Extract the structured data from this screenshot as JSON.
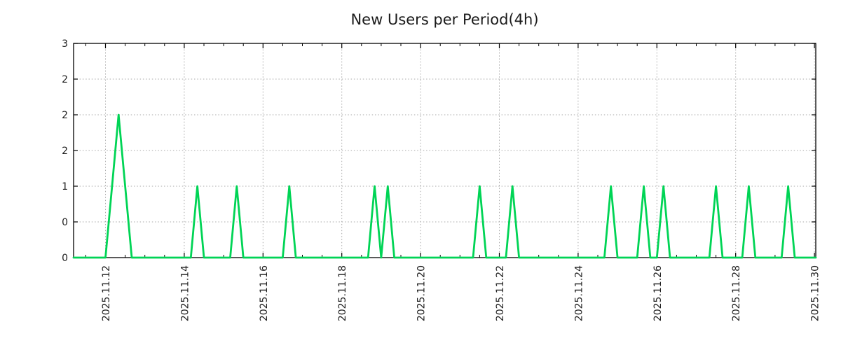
{
  "title": "New Users per Period(4h)",
  "colors": {
    "line": "#00d455",
    "grid": "#a8a8a8",
    "axis": "#000000",
    "text": "#1f1f1f",
    "background": "#ffffff"
  },
  "chart_data": {
    "type": "line",
    "title": "New Users per Period(4h)",
    "period_hours": 4,
    "x_start": "2025.11.11 04:00",
    "x_end": "2025.11.30 04:00",
    "baseline_value": 0,
    "nonzero_points": [
      {
        "t": "2025.11.12 04:00",
        "v": 1
      },
      {
        "t": "2025.11.12 08:00",
        "v": 2
      },
      {
        "t": "2025.11.12 12:00",
        "v": 1
      },
      {
        "t": "2025.11.14 08:00",
        "v": 1
      },
      {
        "t": "2025.11.15 08:00",
        "v": 1
      },
      {
        "t": "2025.11.16 16:00",
        "v": 1
      },
      {
        "t": "2025.11.18 20:00",
        "v": 1
      },
      {
        "t": "2025.11.19 04:00",
        "v": 1
      },
      {
        "t": "2025.11.21 12:00",
        "v": 1
      },
      {
        "t": "2025.11.22 08:00",
        "v": 1
      },
      {
        "t": "2025.11.24 20:00",
        "v": 1
      },
      {
        "t": "2025.11.25 16:00",
        "v": 1
      },
      {
        "t": "2025.11.26 04:00",
        "v": 1
      },
      {
        "t": "2025.11.27 12:00",
        "v": 1
      },
      {
        "t": "2025.11.28 08:00",
        "v": 1
      },
      {
        "t": "2025.11.29 08:00",
        "v": 1
      }
    ],
    "ylim": [
      0,
      3
    ],
    "y_ticks": {
      "values": [
        0,
        0.5,
        1,
        1.5,
        2,
        2.5,
        3
      ],
      "labels": [
        "0",
        "0",
        "1",
        "2",
        "2",
        "2",
        "3"
      ]
    },
    "x_ticks": {
      "labels": [
        "2025.11.12",
        "2025.11.14",
        "2025.11.16",
        "2025.11.18",
        "2025.11.20",
        "2025.11.22",
        "2025.11.24",
        "2025.11.26",
        "2025.11.28",
        "2025.11.30"
      ],
      "interval_days": 2,
      "minor_interval_hours": 12
    },
    "grid": true,
    "legend": false,
    "line_color": "#00d455"
  }
}
